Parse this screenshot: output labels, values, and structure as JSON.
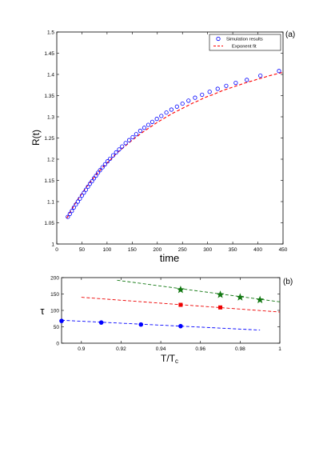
{
  "chart_data": [
    {
      "type": "scatter",
      "panel_label": "(a)",
      "xlabel": "time",
      "ylabel": "R(t)",
      "xlim": [
        0,
        450
      ],
      "ylim": [
        1,
        1.5
      ],
      "x_ticks": [
        0,
        50,
        100,
        150,
        200,
        250,
        300,
        350,
        400,
        450
      ],
      "y_ticks": [
        1,
        1.05,
        1.1,
        1.15,
        1.2,
        1.25,
        1.3,
        1.35,
        1.4,
        1.45,
        1.5
      ],
      "legend": {
        "placement": "top-right",
        "entries": [
          "Simulation results",
          "Exponent fit"
        ]
      },
      "series": [
        {
          "name": "Simulation results",
          "marker": "open-circle",
          "color": "#0000ff",
          "x": [
            22,
            26,
            30,
            34,
            38,
            42,
            46,
            50,
            54,
            58,
            62,
            66,
            70,
            74,
            78,
            82,
            86,
            91,
            96,
            101,
            106,
            112,
            118,
            124,
            130,
            137,
            144,
            151,
            158,
            166,
            174,
            182,
            190,
            199,
            208,
            218,
            228,
            239,
            250,
            262,
            275,
            289,
            304,
            320,
            337,
            356,
            378,
            405,
            442
          ],
          "y": [
            1.064,
            1.071,
            1.078,
            1.086,
            1.093,
            1.1,
            1.107,
            1.114,
            1.121,
            1.128,
            1.135,
            1.142,
            1.148,
            1.155,
            1.161,
            1.168,
            1.174,
            1.181,
            1.188,
            1.195,
            1.201,
            1.209,
            1.216,
            1.223,
            1.23,
            1.238,
            1.245,
            1.252,
            1.259,
            1.267,
            1.274,
            1.281,
            1.288,
            1.295,
            1.302,
            1.31,
            1.317,
            1.324,
            1.331,
            1.338,
            1.345,
            1.352,
            1.359,
            1.366,
            1.373,
            1.38,
            1.387,
            1.397,
            1.408
          ]
        },
        {
          "name": "Exponent fit",
          "line": "dashed",
          "color": "#ff0000",
          "x": [
            20,
            30,
            40,
            50,
            60,
            70,
            80,
            90,
            100,
            110,
            120,
            130,
            140,
            150,
            160,
            170,
            180,
            190,
            200,
            210,
            220,
            230,
            240,
            250,
            260,
            270,
            280,
            290,
            300,
            310,
            320,
            330,
            340,
            350,
            360,
            370,
            380,
            390,
            400,
            410,
            420,
            430,
            440,
            450
          ],
          "y": [
            1.061,
            1.082,
            1.102,
            1.119,
            1.136,
            1.151,
            1.166,
            1.179,
            1.191,
            1.203,
            1.215,
            1.225,
            1.235,
            1.245,
            1.254,
            1.263,
            1.271,
            1.279,
            1.287,
            1.294,
            1.301,
            1.308,
            1.314,
            1.32,
            1.326,
            1.332,
            1.337,
            1.343,
            1.348,
            1.352,
            1.357,
            1.362,
            1.366,
            1.37,
            1.374,
            1.378,
            1.382,
            1.385,
            1.389,
            1.392,
            1.396,
            1.399,
            1.402,
            1.405
          ]
        }
      ]
    },
    {
      "type": "scatter",
      "panel_label": "(b)",
      "xlabel": "T/Tc",
      "ylabel": "τ",
      "xlim": [
        0.89,
        1.0
      ],
      "ylim": [
        0,
        200
      ],
      "x_ticks": [
        "0.9",
        "0.92",
        "0.94",
        "0.96",
        "0.98",
        "1"
      ],
      "x_tick_values": [
        0.9,
        0.92,
        0.94,
        0.96,
        0.98,
        1.0
      ],
      "y_ticks": [
        0,
        50,
        100,
        150,
        200
      ],
      "series": [
        {
          "marker": "filled-circle",
          "color": "#0000ff",
          "x": [
            0.89,
            0.91,
            0.93,
            0.95
          ],
          "y": [
            68,
            63,
            57,
            52
          ],
          "fit": {
            "x": [
              0.89,
              0.99
            ],
            "y": [
              70,
              40
            ]
          }
        },
        {
          "marker": "filled-square",
          "color": "#ee0000",
          "x": [
            0.95,
            0.97
          ],
          "y": [
            117,
            109
          ],
          "fit": {
            "x": [
              0.9,
              1.0
            ],
            "y": [
              140,
              95
            ]
          }
        },
        {
          "marker": "star",
          "color": "#117711",
          "x": [
            0.95,
            0.97,
            0.98,
            0.99
          ],
          "y": [
            163,
            148,
            140,
            132
          ],
          "fit": {
            "x": [
              0.918,
              1.0
            ],
            "y": [
              192,
              126
            ]
          }
        }
      ]
    }
  ]
}
